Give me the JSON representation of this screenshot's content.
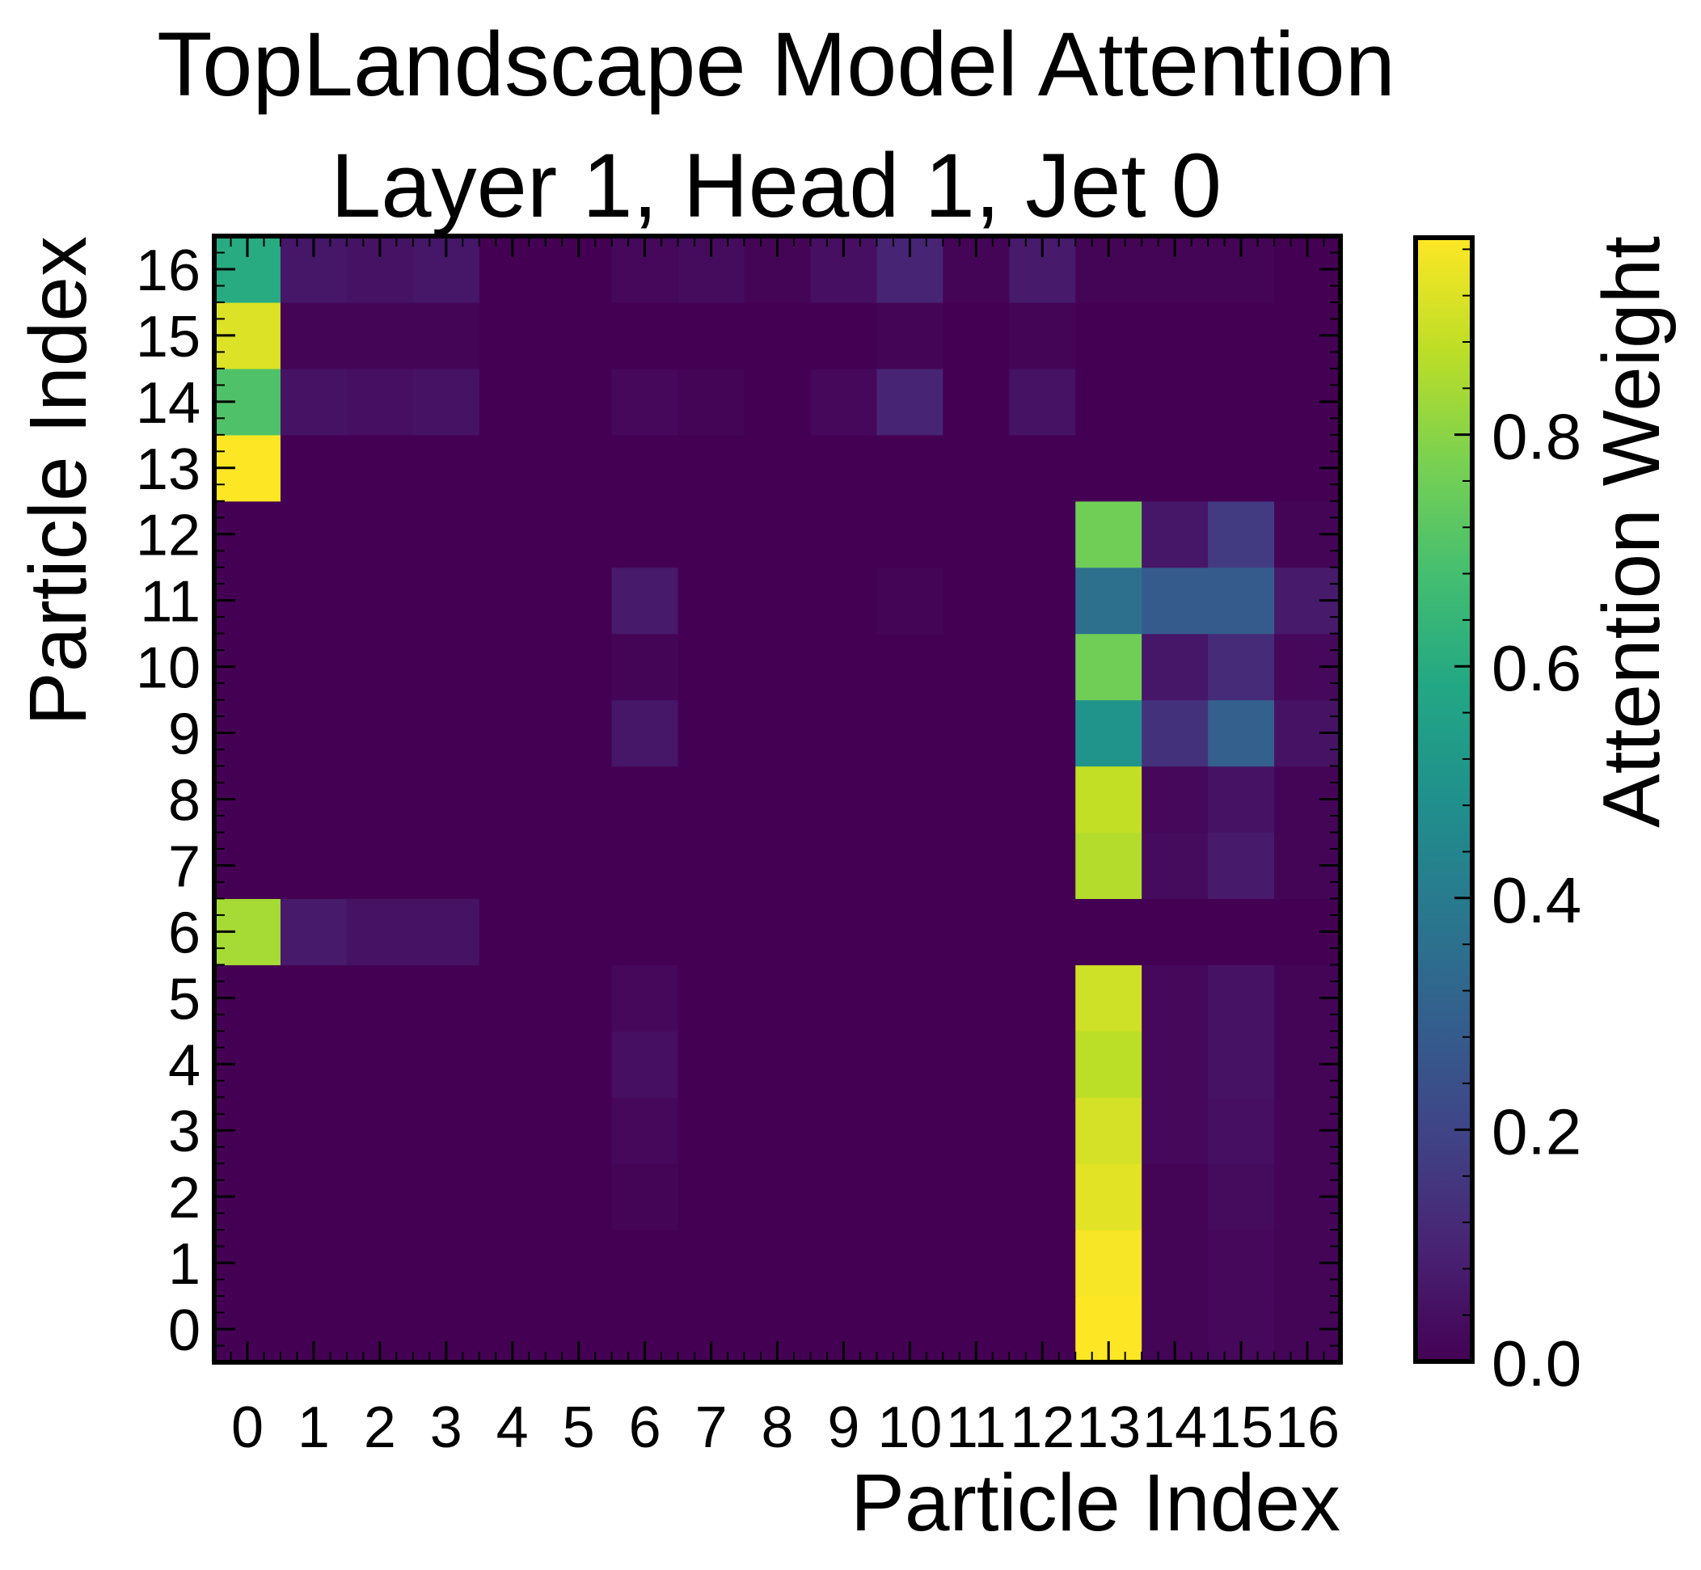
{
  "chart_data": {
    "type": "heatmap",
    "title_line1": "TopLandscape Model Attention",
    "title_line2": "Layer 1, Head 1, Jet 0",
    "xlabel": "Particle Index",
    "ylabel": "Particle Index",
    "colorbar_label": "Attention Weight",
    "colormap": "viridis",
    "vmin": 0.0,
    "vmax": 0.97,
    "colorbar_ticks": [
      "0.0",
      "0.2",
      "0.4",
      "0.6",
      "0.8"
    ],
    "colorbar_tick_values": [
      0.0,
      0.2,
      0.4,
      0.6,
      0.8
    ],
    "x_ticks": [
      "0",
      "1",
      "2",
      "3",
      "4",
      "5",
      "6",
      "7",
      "8",
      "9",
      "10",
      "11",
      "12",
      "13",
      "14",
      "15",
      "16"
    ],
    "y_ticks": [
      "0",
      "1",
      "2",
      "3",
      "4",
      "5",
      "6",
      "7",
      "8",
      "9",
      "10",
      "11",
      "12",
      "13",
      "14",
      "15",
      "16"
    ],
    "values": [
      [
        0,
        0,
        0,
        0,
        0,
        0,
        0,
        0,
        0,
        0,
        0,
        0,
        0,
        0.97,
        0.01,
        0.02,
        0.01
      ],
      [
        0,
        0,
        0,
        0,
        0,
        0,
        0,
        0,
        0,
        0,
        0,
        0,
        0,
        0.96,
        0.01,
        0.02,
        0.01
      ],
      [
        0,
        0,
        0,
        0,
        0,
        0,
        0.01,
        0,
        0,
        0,
        0,
        0,
        0,
        0.93,
        0.01,
        0.03,
        0.01
      ],
      [
        0,
        0,
        0,
        0,
        0,
        0,
        0.02,
        0,
        0,
        0,
        0,
        0,
        0,
        0.91,
        0.02,
        0.04,
        0.01
      ],
      [
        0,
        0,
        0,
        0,
        0,
        0,
        0.04,
        0,
        0,
        0,
        0,
        0,
        0,
        0.87,
        0.02,
        0.05,
        0.01
      ],
      [
        0,
        0,
        0,
        0,
        0,
        0,
        0.02,
        0,
        0,
        0,
        0,
        0,
        0,
        0.9,
        0.02,
        0.05,
        0.01
      ],
      [
        0.84,
        0.07,
        0.05,
        0.05,
        0,
        0,
        0,
        0,
        0,
        0,
        0,
        0,
        0,
        0,
        0,
        0,
        0
      ],
      [
        0,
        0,
        0,
        0,
        0,
        0,
        0,
        0,
        0,
        0,
        0,
        0,
        0,
        0.86,
        0.03,
        0.07,
        0.01
      ],
      [
        0,
        0,
        0,
        0,
        0,
        0,
        0,
        0,
        0,
        0,
        0,
        0,
        0,
        0.88,
        0.02,
        0.05,
        0.01
      ],
      [
        0,
        0,
        0,
        0,
        0,
        0,
        0.06,
        0,
        0,
        0,
        0,
        0,
        0,
        0.5,
        0.14,
        0.3,
        0.05
      ],
      [
        0,
        0,
        0,
        0,
        0,
        0,
        0.01,
        0,
        0,
        0,
        0,
        0,
        0,
        0.76,
        0.06,
        0.12,
        0.02
      ],
      [
        0,
        0,
        0,
        0,
        0,
        0,
        0.07,
        0,
        0,
        0,
        0.01,
        0,
        0,
        0.36,
        0.28,
        0.28,
        0.07
      ],
      [
        0,
        0,
        0,
        0,
        0,
        0,
        0,
        0,
        0,
        0,
        0,
        0,
        0,
        0.76,
        0.06,
        0.17,
        0.01
      ],
      [
        0.97,
        0,
        0,
        0,
        0,
        0,
        0,
        0,
        0,
        0,
        0,
        0,
        0,
        0,
        0,
        0,
        0
      ],
      [
        0.7,
        0.05,
        0.04,
        0.05,
        0,
        0,
        0.02,
        0.01,
        0,
        0.02,
        0.1,
        0,
        0.05,
        0,
        0,
        0,
        0
      ],
      [
        0.92,
        0.01,
        0.01,
        0.01,
        0,
        0,
        0,
        0,
        0,
        0,
        0.01,
        0,
        0.01,
        0,
        0,
        0,
        0
      ],
      [
        0.6,
        0.06,
        0.05,
        0.06,
        0,
        0,
        0.02,
        0.03,
        0.01,
        0.04,
        0.1,
        0.01,
        0.07,
        0.01,
        0.01,
        0.01,
        0
      ]
    ]
  }
}
